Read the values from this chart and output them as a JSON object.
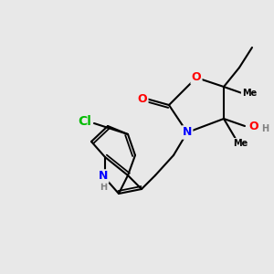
{
  "background_color": "#e8e8e8",
  "bond_color": "#000000",
  "bond_width": 1.5,
  "atom_colors": {
    "O": "#ff0000",
    "N": "#0000ff",
    "Cl": "#00bb00",
    "C": "#000000",
    "H": "#808080"
  },
  "font_size": 9,
  "font_size_small": 7
}
